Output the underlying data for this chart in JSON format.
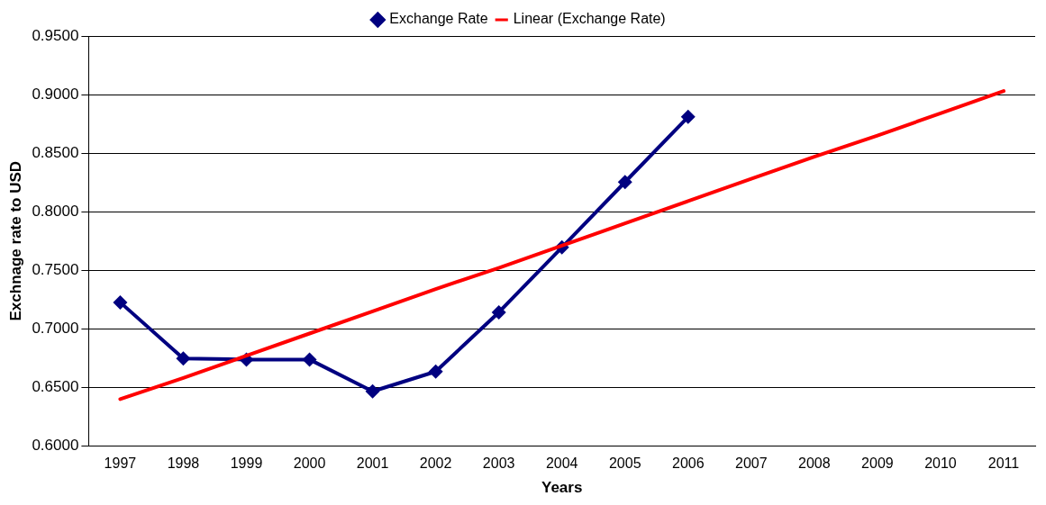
{
  "chart_data": {
    "type": "line",
    "xlabel": "Years",
    "ylabel": "Exchnage rate to USD",
    "categories": [
      "1997",
      "1998",
      "1999",
      "2000",
      "2001",
      "2002",
      "2003",
      "2004",
      "2005",
      "2006",
      "2007",
      "2008",
      "2009",
      "2010",
      "2011"
    ],
    "series": [
      {
        "name": "Exchange Rate",
        "color": "#000080",
        "marker": "diamond",
        "values": [
          0.7226,
          0.6746,
          0.6738,
          0.6738,
          0.6466,
          0.6635,
          0.7141,
          0.7695,
          0.8253,
          0.881,
          null,
          null,
          null,
          null,
          null
        ]
      },
      {
        "name": "Linear (Exchange Rate)",
        "type": "line",
        "color": "#ff0000",
        "marker": "none",
        "values": [
          0.64,
          0.658,
          0.677,
          0.696,
          0.715,
          0.734,
          0.752,
          0.771,
          0.79,
          0.809,
          0.828,
          0.847,
          0.865,
          0.884,
          0.903
        ]
      }
    ],
    "ylim": [
      0.6,
      0.95
    ],
    "yticks": [
      {
        "value": 0.6,
        "label": "0.6000"
      },
      {
        "value": 0.65,
        "label": "0.6500"
      },
      {
        "value": 0.7,
        "label": "0.7000"
      },
      {
        "value": 0.75,
        "label": "0.7500"
      },
      {
        "value": 0.8,
        "label": "0.8000"
      },
      {
        "value": 0.85,
        "label": "0.8500"
      },
      {
        "value": 0.9,
        "label": "0.9000"
      },
      {
        "value": 0.95,
        "label": "0.9500"
      }
    ],
    "grid": "y",
    "legend": "top",
    "line_style": "solid"
  }
}
